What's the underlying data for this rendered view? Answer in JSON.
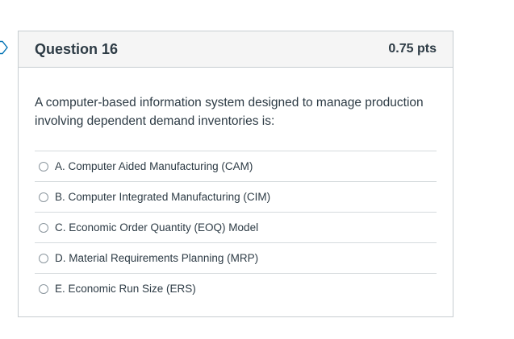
{
  "question": {
    "title": "Question 16",
    "points": "0.75 pts",
    "text": "A computer-based information system designed to manage production involving dependent demand inventories is:",
    "answers": [
      {
        "label": "A. Computer Aided Manufacturing (CAM)"
      },
      {
        "label": "B. Computer Integrated Manufacturing (CIM)"
      },
      {
        "label": "C. Economic Order Quantity (EOQ) Model"
      },
      {
        "label": "D. Material Requirements Planning (MRP)"
      },
      {
        "label": "E. Economic Run Size (ERS)"
      }
    ]
  },
  "colors": {
    "text": "#2d3b45",
    "header_bg": "#f5f5f5",
    "border": "#c7cdd1",
    "flag": "#0374b5"
  },
  "icons": {
    "flag": "flag-marker-icon"
  }
}
